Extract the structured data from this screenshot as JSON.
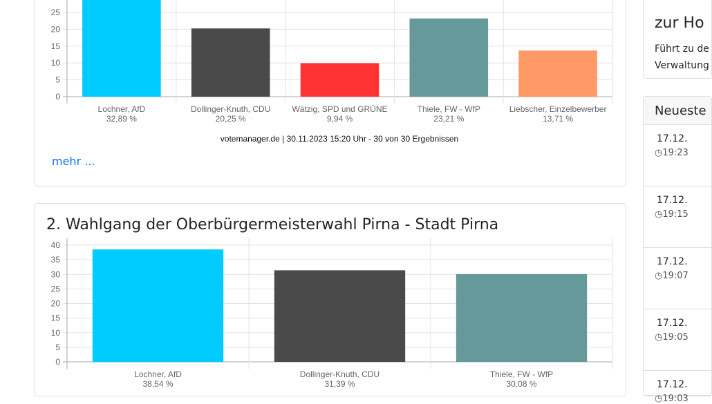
{
  "charts_section": {
    "more_link": "mehr ...",
    "second_title": "2. Wahlgang der Oberbürgermeisterwahl Pirna - Stadt Pirna"
  },
  "chart_data": [
    {
      "type": "bar",
      "ylim": [
        0,
        35
      ],
      "yticks": [
        0,
        5,
        10,
        15,
        20,
        25
      ],
      "grid": true,
      "categories": [
        "Lochner, AfD",
        "Dollinger-Knuth, CDU",
        "Wätzig, SPD und GRÜNE",
        "Thiele, FW - WfP",
        "Liebscher, Einzelbewerber"
      ],
      "values": [
        32.89,
        20.25,
        9.94,
        23.21,
        13.71
      ],
      "value_labels": [
        "32,89 %",
        "20,25 %",
        "9,94 %",
        "23,21 %",
        "13,71 %"
      ],
      "colors": [
        "#00ccff",
        "#4a4a4a",
        "#ff3333",
        "#669999",
        "#ff9966"
      ],
      "source": "votemanager.de | 30.11.2023 15:20 Uhr - 30 von 30 Ergebnissen"
    },
    {
      "type": "bar",
      "ylim": [
        0,
        40
      ],
      "yticks": [
        0,
        5,
        10,
        15,
        20,
        25,
        30,
        35,
        40
      ],
      "grid": true,
      "categories": [
        "Lochner, AfD",
        "Dollinger-Knuth, CDU",
        "Thiele, FW - WfP"
      ],
      "values": [
        38.54,
        31.39,
        30.08
      ],
      "value_labels": [
        "38,54 %",
        "31,39 %",
        "30,08 %"
      ],
      "colors": [
        "#00ccff",
        "#4a4a4a",
        "#669999"
      ]
    }
  ],
  "sidebar": {
    "home_card": {
      "title": "zur Ho",
      "line1": "Führt zu de",
      "line2": "Verwaltung"
    },
    "news": {
      "header": "Neueste",
      "items": [
        {
          "date": "17.12.",
          "time": "19:23"
        },
        {
          "date": "17.12.",
          "time": "19:15"
        },
        {
          "date": "17.12.",
          "time": "19:07"
        },
        {
          "date": "17.12.",
          "time": "19:05"
        },
        {
          "date": "17.12.",
          "time": "19:03"
        }
      ]
    }
  }
}
